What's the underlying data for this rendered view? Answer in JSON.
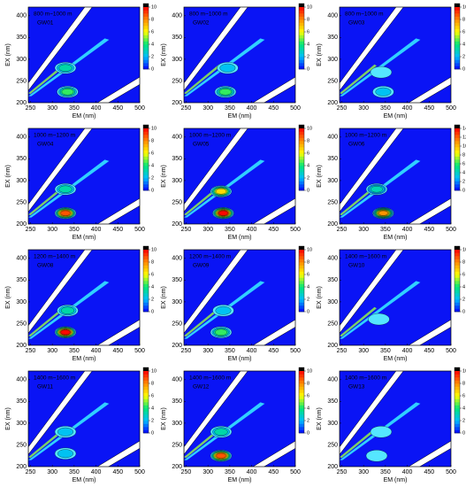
{
  "chart_data": [
    {
      "type": "contour",
      "title": "800 m~1000 m",
      "subtitle": "GW01",
      "x_label": "EM (nm)",
      "y_label": "EX (nm)",
      "xlim": [
        245,
        500
      ],
      "xticks": [
        250,
        300,
        350,
        400,
        450,
        500
      ],
      "ylim": [
        200,
        420
      ],
      "yticks": [
        200,
        250,
        300,
        350,
        400
      ],
      "zlim": [
        0,
        10
      ],
      "zticks": [
        0,
        2,
        4,
        6,
        8,
        10
      ],
      "peaks": [
        {
          "x": 335,
          "y": 225,
          "value": 4
        },
        {
          "x": 330,
          "y": 280,
          "value": 3
        }
      ]
    },
    {
      "type": "contour",
      "title": "800 m~1000 m",
      "subtitle": "GW02",
      "x_label": "EM (nm)",
      "y_label": "EX (nm)",
      "xlim": [
        245,
        500
      ],
      "xticks": [
        250,
        300,
        350,
        400,
        450,
        500
      ],
      "ylim": [
        200,
        420
      ],
      "yticks": [
        200,
        250,
        300,
        350,
        400
      ],
      "zlim": [
        0,
        10
      ],
      "zticks": [
        0,
        2,
        4,
        6,
        8,
        10
      ],
      "peaks": [
        {
          "x": 340,
          "y": 225,
          "value": 4
        },
        {
          "x": 345,
          "y": 280,
          "value": 2
        }
      ]
    },
    {
      "type": "contour",
      "title": "800 m~1000 m",
      "subtitle": "GW03",
      "x_label": "EM (nm)",
      "y_label": "EX (nm)",
      "xlim": [
        245,
        500
      ],
      "xticks": [
        250,
        300,
        350,
        400,
        450,
        500
      ],
      "ylim": [
        200,
        420
      ],
      "yticks": [
        200,
        250,
        300,
        350,
        400
      ],
      "zlim": [
        0,
        10
      ],
      "zticks": [
        0,
        2,
        4,
        6,
        8,
        10
      ],
      "peaks": [
        {
          "x": 345,
          "y": 225,
          "value": 2
        },
        {
          "x": 340,
          "y": 270,
          "value": 1
        }
      ]
    },
    {
      "type": "contour",
      "title": "1000 m~1200 m",
      "subtitle": "GW04",
      "x_label": "EM (nm)",
      "y_label": "EX (nm)",
      "xlim": [
        245,
        500
      ],
      "xticks": [
        250,
        300,
        350,
        400,
        450,
        500
      ],
      "ylim": [
        200,
        420
      ],
      "yticks": [
        200,
        250,
        300,
        350,
        400
      ],
      "zlim": [
        0,
        10
      ],
      "zticks": [
        0,
        2,
        4,
        6,
        8,
        10
      ],
      "peaks": [
        {
          "x": 330,
          "y": 225,
          "value": 8
        },
        {
          "x": 330,
          "y": 280,
          "value": 3
        }
      ]
    },
    {
      "type": "contour",
      "title": "1000 m~1200 m",
      "subtitle": "GW05",
      "x_label": "EM (nm)",
      "y_label": "EX (nm)",
      "xlim": [
        245,
        500
      ],
      "xticks": [
        250,
        300,
        350,
        400,
        450,
        500
      ],
      "ylim": [
        200,
        420
      ],
      "yticks": [
        200,
        250,
        300,
        350,
        400
      ],
      "zlim": [
        0,
        10
      ],
      "zticks": [
        0,
        2,
        4,
        6,
        8,
        10
      ],
      "peaks": [
        {
          "x": 335,
          "y": 225,
          "value": 9
        },
        {
          "x": 330,
          "y": 275,
          "value": 6
        }
      ]
    },
    {
      "type": "contour",
      "title": "1000 m~1200 m",
      "subtitle": "GW06",
      "x_label": "EM (nm)",
      "y_label": "EX (nm)",
      "xlim": [
        245,
        500
      ],
      "xticks": [
        250,
        300,
        350,
        400,
        450,
        500
      ],
      "ylim": [
        200,
        420
      ],
      "yticks": [
        200,
        250,
        300,
        350,
        400
      ],
      "zlim": [
        0,
        14
      ],
      "zticks": [
        0,
        2,
        4,
        6,
        8,
        10,
        12,
        14
      ],
      "peaks": [
        {
          "x": 345,
          "y": 225,
          "value": 10
        },
        {
          "x": 330,
          "y": 280,
          "value": 4
        }
      ]
    },
    {
      "type": "contour",
      "title": "1200 m~1400 m",
      "subtitle": "GW08",
      "x_label": "EM (nm)",
      "y_label": "EX (nm)",
      "xlim": [
        245,
        500
      ],
      "xticks": [
        250,
        300,
        350,
        400,
        450,
        500
      ],
      "ylim": [
        200,
        420
      ],
      "yticks": [
        200,
        250,
        300,
        350,
        400
      ],
      "zlim": [
        0,
        10
      ],
      "zticks": [
        0,
        2,
        4,
        6,
        8,
        10
      ],
      "peaks": [
        {
          "x": 330,
          "y": 230,
          "value": 9
        },
        {
          "x": 335,
          "y": 280,
          "value": 3
        }
      ]
    },
    {
      "type": "contour",
      "title": "1200 m~1400 m",
      "subtitle": "GW09",
      "x_label": "EM (nm)",
      "y_label": "EX (nm)",
      "xlim": [
        245,
        500
      ],
      "xticks": [
        250,
        300,
        350,
        400,
        450,
        500
      ],
      "ylim": [
        200,
        420
      ],
      "yticks": [
        200,
        250,
        300,
        350,
        400
      ],
      "zlim": [
        0,
        10
      ],
      "zticks": [
        0,
        2,
        4,
        6,
        8,
        10
      ],
      "peaks": [
        {
          "x": 330,
          "y": 230,
          "value": 4
        },
        {
          "x": 335,
          "y": 280,
          "value": 2
        }
      ]
    },
    {
      "type": "contour",
      "title": "1400 m~1600 m",
      "subtitle": "GW10",
      "x_label": "EM (nm)",
      "y_label": "EX (nm)",
      "xlim": [
        245,
        500
      ],
      "xticks": [
        250,
        300,
        350,
        400,
        450,
        500
      ],
      "ylim": [
        200,
        420
      ],
      "yticks": [
        200,
        250,
        300,
        350,
        400
      ],
      "zlim": [
        0,
        10
      ],
      "zticks": [
        0,
        2,
        4,
        6,
        8,
        10
      ],
      "peaks": [
        {
          "x": 335,
          "y": 260,
          "value": 1
        }
      ]
    },
    {
      "type": "contour",
      "title": "1400 m~1600 m",
      "subtitle": "GW11",
      "x_label": "EM (nm)",
      "y_label": "EX (nm)",
      "xlim": [
        245,
        500
      ],
      "xticks": [
        250,
        300,
        350,
        400,
        450,
        500
      ],
      "ylim": [
        200,
        420
      ],
      "yticks": [
        200,
        250,
        300,
        350,
        400
      ],
      "zlim": [
        0,
        10
      ],
      "zticks": [
        0,
        2,
        4,
        6,
        8,
        10
      ],
      "peaks": [
        {
          "x": 330,
          "y": 230,
          "value": 2
        },
        {
          "x": 330,
          "y": 280,
          "value": 2
        }
      ]
    },
    {
      "type": "contour",
      "title": "1400 m~1600 m",
      "subtitle": "GW12",
      "x_label": "EM (nm)",
      "y_label": "EX (nm)",
      "xlim": [
        245,
        500
      ],
      "xticks": [
        250,
        300,
        350,
        400,
        450,
        500
      ],
      "ylim": [
        200,
        420
      ],
      "yticks": [
        200,
        250,
        300,
        350,
        400
      ],
      "zlim": [
        0,
        10
      ],
      "zticks": [
        0,
        2,
        4,
        6,
        8,
        10
      ],
      "peaks": [
        {
          "x": 330,
          "y": 225,
          "value": 8
        },
        {
          "x": 330,
          "y": 280,
          "value": 3
        }
      ]
    },
    {
      "type": "contour",
      "title": "1400 m~1600 m",
      "subtitle": "GW13",
      "x_label": "EM (nm)",
      "y_label": "EX (nm)",
      "xlim": [
        245,
        500
      ],
      "xticks": [
        250,
        300,
        350,
        400,
        450,
        500
      ],
      "ylim": [
        200,
        420
      ],
      "yticks": [
        200,
        250,
        300,
        350,
        400
      ],
      "zlim": [
        0,
        10
      ],
      "zticks": [
        0,
        2,
        4,
        6,
        8,
        10
      ],
      "peaks": [
        {
          "x": 330,
          "y": 225,
          "value": 1
        },
        {
          "x": 340,
          "y": 280,
          "value": 1
        }
      ]
    }
  ]
}
